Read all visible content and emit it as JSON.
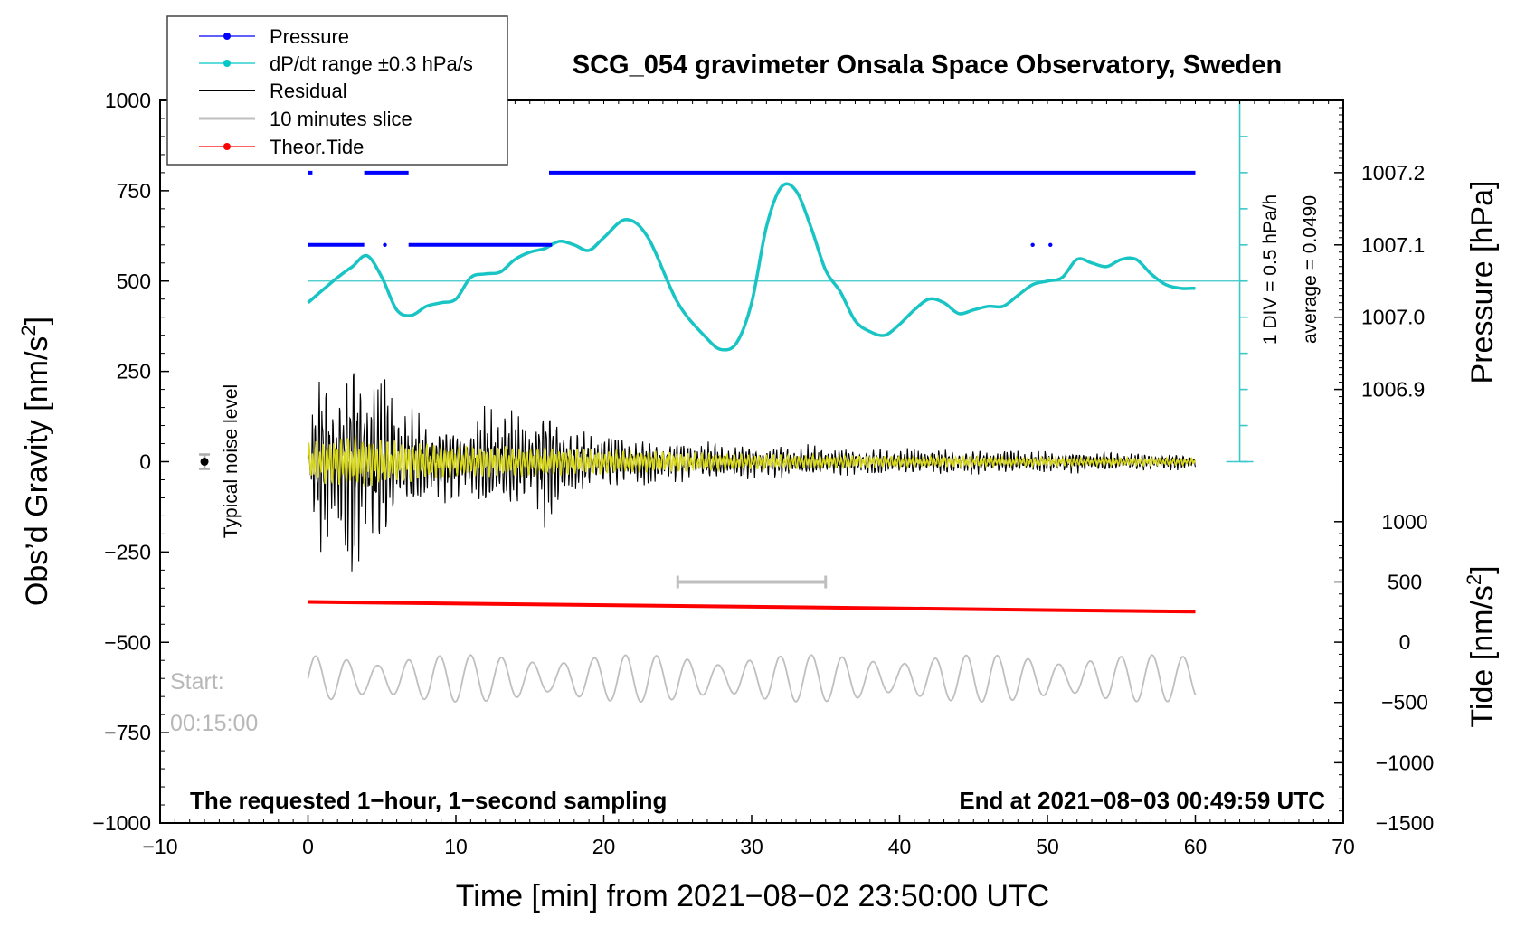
{
  "chart_data": {
    "type": "line",
    "title": "SCG_054 gravimeter Onsala Space Observatory, Sweden",
    "xlabel": "Time [min] from 2021−08−02 23:50:00 UTC",
    "ylabel_left_main": "Obs’d Gravity [nm/s",
    "ylabel_left_sup": "2",
    "ylabel_left_end": "]",
    "ylabel_right_pressure": "Pressure [hPa]",
    "ylabel_right_tide_main": "Tide [nm/s",
    "ylabel_right_tide_sup": "2",
    "ylabel_right_tide_end": "]",
    "xlim": [
      -10,
      70
    ],
    "ylim": [
      -1000,
      1000
    ],
    "x_ticks": [
      "−10",
      "0",
      "10",
      "20",
      "30",
      "40",
      "50",
      "60",
      "70"
    ],
    "x_tick_values": [
      -10,
      0,
      10,
      20,
      30,
      40,
      50,
      60,
      70
    ],
    "y_ticks": [
      "1000",
      "750",
      "500",
      "250",
      "0",
      "−250",
      "−500",
      "−750",
      "−1000"
    ],
    "y_tick_values": [
      1000,
      750,
      500,
      250,
      0,
      -250,
      -500,
      -750,
      -1000
    ],
    "pressure_ticks": [
      "1007.2",
      "1007.1",
      "1007.0",
      "1006.9"
    ],
    "pressure_tick_values": [
      1007.2,
      1007.1,
      1007.0,
      1006.9
    ],
    "pressure_axis": {
      "value_at_gravity_0": 1006.8,
      "value_at_gravity_1000": 1007.3
    },
    "tide_ticks": [
      "1000",
      "500",
      "0",
      "−500",
      "−1000",
      "−1500"
    ],
    "tide_tick_values": [
      1000,
      500,
      0,
      -500,
      -1000,
      -1500
    ],
    "tide_axis": {
      "value_at_gravity_-1000": -1500,
      "value_at_gravity_-166": 1000
    },
    "legend": [
      {
        "label": "Pressure",
        "color": "#0000ff"
      },
      {
        "label": "dP/dt range ±0.3 hPa/s",
        "color": "#00c8c8"
      },
      {
        "label": "Residual",
        "color": "#000000"
      },
      {
        "label": "10 minutes slice",
        "color": "#bfbfbf"
      },
      {
        "label": "Theor.Tide",
        "color": "#ff0000"
      }
    ],
    "legend_placement": "top-left",
    "annotations": {
      "noise_label": "Typical noise level",
      "div_label": "1 DIV = 0.5 hPa/h",
      "average_label": "average = 0.0490",
      "start_label": "Start:",
      "start_time": "00:15:00",
      "bottom_left": "The requested 1−hour, 1−second sampling",
      "bottom_right": "End at 2021−08−03 00:49:59 UTC"
    },
    "series": [
      {
        "name": "Pressure",
        "color": "#0000ff",
        "segments": [
          {
            "x": [
              0.0,
              0.3
            ],
            "y": 1007.2
          },
          {
            "x": [
              3.8,
              6.8
            ],
            "y": 1007.2
          },
          {
            "x": [
              16.3,
              60.0
            ],
            "y": 1007.2
          },
          {
            "x": [
              0.0,
              3.8
            ],
            "y": 1007.1
          },
          {
            "x": [
              6.8,
              16.5
            ],
            "y": 1007.1
          }
        ],
        "dots": [
          {
            "x": 5.2,
            "y": 1007.1
          },
          {
            "x": 49.0,
            "y": 1007.1
          },
          {
            "x": 50.2,
            "y": 1007.1
          }
        ]
      },
      {
        "name": "dP/dt",
        "color": "#19c4c4",
        "x": [
          0,
          2,
          3,
          4,
          5,
          6,
          7,
          8,
          9,
          10,
          11,
          12,
          13,
          14,
          15,
          16,
          17,
          18,
          19,
          20,
          21.5,
          23,
          25,
          27,
          28,
          29,
          30,
          31,
          32,
          33,
          34,
          35,
          36,
          37,
          38,
          39,
          40,
          41,
          42,
          43,
          44,
          45,
          46,
          47,
          48,
          49,
          50,
          51,
          52,
          53,
          54,
          55,
          56,
          57,
          58,
          59,
          60
        ],
        "y": [
          440,
          510,
          540,
          570,
          510,
          420,
          405,
          430,
          440,
          450,
          510,
          520,
          525,
          560,
          580,
          590,
          610,
          600,
          585,
          620,
          670,
          620,
          440,
          340,
          310,
          330,
          440,
          650,
          760,
          750,
          650,
          530,
          470,
          390,
          360,
          350,
          380,
          420,
          450,
          440,
          410,
          420,
          430,
          430,
          460,
          490,
          500,
          510,
          560,
          550,
          540,
          560,
          560,
          520,
          490,
          480,
          480
        ]
      },
      {
        "name": "Residual",
        "color": "#000000",
        "amplitude_envelope": {
          "x": [
            0,
            1,
            2,
            3,
            4,
            5,
            6,
            7,
            8,
            9,
            10,
            11,
            12,
            13,
            14,
            15,
            16,
            17,
            18,
            20,
            25,
            30,
            35,
            40,
            45,
            50,
            55,
            60
          ],
          "amp": [
            80,
            330,
            250,
            380,
            310,
            280,
            210,
            160,
            140,
            130,
            125,
            120,
            170,
            195,
            150,
            140,
            195,
            160,
            100,
            90,
            65,
            55,
            48,
            42,
            40,
            36,
            30,
            25
          ]
        }
      },
      {
        "name": "10 minutes slice",
        "color": "#bfbfbf",
        "range": [
          25,
          35
        ],
        "y": -333,
        "baseline": -600,
        "amplitude": 65
      },
      {
        "name": "Theor.Tide",
        "color": "#ff0000",
        "x": [
          0,
          60
        ],
        "y": [
          -388,
          -415
        ]
      },
      {
        "name": "Filtered",
        "color": "#d8d81e",
        "amplitude_envelope": {
          "x": [
            0,
            3,
            6,
            10,
            15,
            20,
            30,
            40,
            50,
            60
          ],
          "amp": [
            55,
            75,
            60,
            45,
            42,
            35,
            22,
            16,
            12,
            10
          ]
        }
      }
    ],
    "noise_marker": {
      "x": -7,
      "y": 0,
      "err": 20
    }
  }
}
